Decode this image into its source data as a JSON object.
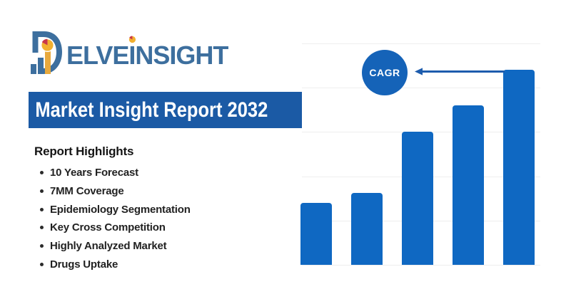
{
  "logo": {
    "wordmark_pre": "ELVE",
    "wordmark_i": "I",
    "wordmark_post": "NSIGHT",
    "icon": "delveinsight-d-with-barchart-and-pie"
  },
  "banner": {
    "title": "Market Insight Report 2032"
  },
  "report": {
    "heading": "Report Highlights",
    "items": [
      "10 Years Forecast",
      "7MM Coverage",
      "Epidemiology Segmentation",
      "Key Cross Competition",
      "Highly Analyzed Market",
      "Drugs Uptake"
    ]
  },
  "chart_data": {
    "type": "bar",
    "categories": [
      "",
      "",
      "",
      "",
      ""
    ],
    "values": [
      1.4,
      1.62,
      3.0,
      3.6,
      4.4
    ],
    "ylim": [
      0,
      5
    ],
    "gridlines": 6,
    "grid": "horizontal",
    "title": "",
    "xlabel": "",
    "ylabel": "",
    "annotation": {
      "label": "CAGR",
      "arrow_direction": "left",
      "arrow_from": "tallest-bar"
    }
  },
  "colors": {
    "bar": "#0f68c2",
    "banner": "#1b5aa5",
    "accent_circle": "#1563b8",
    "arrow": "#1d5cad",
    "logo_blue": "#3d6f9e",
    "logo_gold": "#e8a93d",
    "pie_yellow": "#f2b02f",
    "logo_red": "#c9364a",
    "gridline": "#eeeeee",
    "text": "#1f1f1f"
  }
}
